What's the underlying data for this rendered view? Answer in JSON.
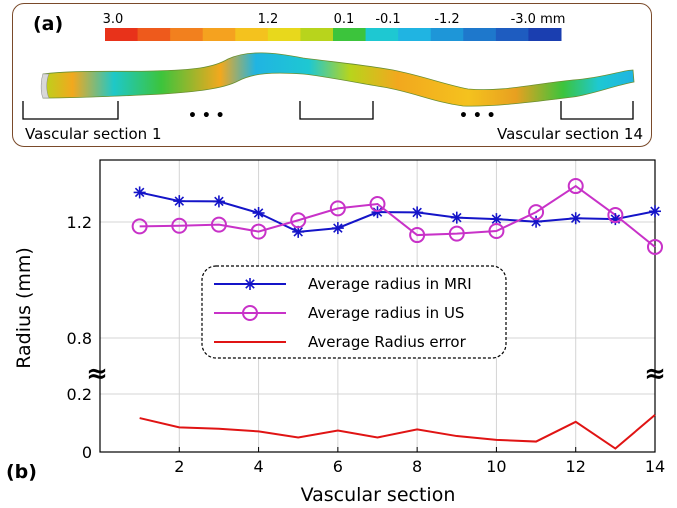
{
  "panel_a": {
    "label": "(a)",
    "colorbar": {
      "tick_labels": [
        "3.0",
        "1.2",
        "0.1",
        "-0.1",
        "-1.2",
        "-3.0 mm"
      ],
      "colors": [
        "#e8321a",
        "#ee5a1c",
        "#f2801e",
        "#f5a21f",
        "#f4c21e",
        "#e8d81c",
        "#b8d41c",
        "#3cc43c",
        "#1ec8d2",
        "#20b4e2",
        "#1e96d8",
        "#1e78cc",
        "#1e5cc0",
        "#1a3eb0"
      ]
    },
    "left_section_label": "Vascular section 1",
    "right_section_label": "Vascular section 14",
    "ellipsis_left": "• • •",
    "ellipsis_right": "• • •"
  },
  "panel_b": {
    "label": "(b)",
    "axis_break_glyph": "≈"
  },
  "chart_data": {
    "type": "line",
    "xlabel": "Vascular section",
    "ylabel": "Radius (mm)",
    "x": [
      1,
      2,
      3,
      4,
      5,
      6,
      7,
      8,
      9,
      10,
      11,
      12,
      13,
      14
    ],
    "x_ticks": [
      "2",
      "4",
      "6",
      "8",
      "10",
      "12",
      "14"
    ],
    "x_tick_values": [
      2,
      4,
      6,
      8,
      10,
      12,
      14
    ],
    "xlim": [
      0,
      14
    ],
    "y_ticks_upper": [
      "0.8",
      "1.2"
    ],
    "y_ticks_lower": [
      "0",
      "0.2"
    ],
    "ylim_lower": [
      0,
      0.2
    ],
    "ylim_upper": [
      0.8,
      1.2
    ],
    "grid": true,
    "legend_placement": "center",
    "series": [
      {
        "name": "Average radius in MRI",
        "color": "#1414c8",
        "marker": "star",
        "values": [
          1.302,
          1.272,
          1.271,
          1.231,
          1.166,
          1.179,
          1.234,
          1.233,
          1.215,
          1.21,
          1.201,
          1.213,
          1.21,
          1.237
        ]
      },
      {
        "name": "Average radius in US",
        "color": "#c832c8",
        "marker": "circle",
        "values": [
          1.185,
          1.187,
          1.191,
          1.167,
          1.206,
          1.247,
          1.262,
          1.155,
          1.16,
          1.169,
          1.234,
          1.324,
          1.224,
          1.114
        ]
      },
      {
        "name": "Average Radius error",
        "color": "#e01414",
        "marker": "none",
        "values": [
          0.117,
          0.085,
          0.08,
          0.071,
          0.05,
          0.074,
          0.05,
          0.078,
          0.055,
          0.042,
          0.036,
          0.104,
          0.012,
          0.128
        ]
      }
    ]
  }
}
